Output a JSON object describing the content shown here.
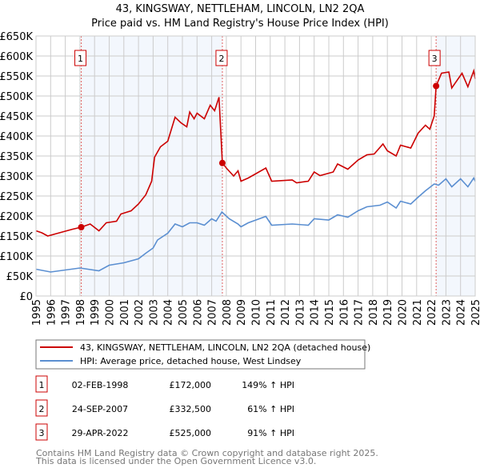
{
  "chart_data": {
    "type": "line",
    "title": "43, KINGSWAY, NETTLEHAM, LINCOLN, LN2 2QA",
    "subtitle": "Price paid vs. HM Land Registry's House Price Index (HPI)",
    "xlim": [
      1995,
      2025
    ],
    "ylim": [
      0,
      650000
    ],
    "x_ticks": [
      "1995",
      "1996",
      "1997",
      "1998",
      "1999",
      "2000",
      "2001",
      "2002",
      "2003",
      "2004",
      "2005",
      "2006",
      "2007",
      "2008",
      "2009",
      "2010",
      "2011",
      "2012",
      "2013",
      "2014",
      "2015",
      "2016",
      "2017",
      "2018",
      "2019",
      "2020",
      "2021",
      "2022",
      "2023",
      "2024",
      "2025"
    ],
    "y_ticks": [
      {
        "v": 0,
        "label": "£0"
      },
      {
        "v": 50000,
        "label": "£50K"
      },
      {
        "v": 100000,
        "label": "£100K"
      },
      {
        "v": 150000,
        "label": "£150K"
      },
      {
        "v": 200000,
        "label": "£200K"
      },
      {
        "v": 250000,
        "label": "£250K"
      },
      {
        "v": 300000,
        "label": "£300K"
      },
      {
        "v": 350000,
        "label": "£350K"
      },
      {
        "v": 400000,
        "label": "£400K"
      },
      {
        "v": 450000,
        "label": "£450K"
      },
      {
        "v": 500000,
        "label": "£500K"
      },
      {
        "v": 550000,
        "label": "£550K"
      },
      {
        "v": 600000,
        "label": "£600K"
      },
      {
        "v": 650000,
        "label": "£650K"
      }
    ],
    "grid": true,
    "series": [
      {
        "name": "43, KINGSWAY, NETTLEHAM, LINCOLN, LN2 2QA (detached house)",
        "color": "#cc0000",
        "x": [
          1995,
          1995.4,
          1995.8,
          1996.5,
          1997.5,
          1998.09,
          1998.7,
          1999.3,
          1999.8,
          2000.5,
          2000.8,
          2001.5,
          2002,
          2002.5,
          2002.9,
          2003.1,
          2003.5,
          2004,
          2004.5,
          2004.9,
          2005.3,
          2005.5,
          2005.8,
          2006,
          2006.5,
          2006.9,
          2007.2,
          2007.5,
          2007.73,
          2008,
          2008.5,
          2008.8,
          2009,
          2009.5,
          2010.7,
          2011.1,
          2012.5,
          2012.8,
          2013.6,
          2014,
          2014.4,
          2015.3,
          2015.6,
          2016.3,
          2017,
          2017.6,
          2018.1,
          2018.7,
          2019,
          2019.6,
          2019.9,
          2020.6,
          2021.1,
          2021.6,
          2021.9,
          2022.2,
          2022.33,
          2022.7,
          2023.2,
          2023.4,
          2024.1,
          2024.5,
          2024.9,
          2025
        ],
        "y": [
          163000,
          158000,
          150000,
          157000,
          167000,
          172000,
          180000,
          163000,
          183000,
          187000,
          205000,
          213000,
          230000,
          253000,
          287000,
          347000,
          373000,
          387000,
          447000,
          433000,
          423000,
          460000,
          443000,
          457000,
          443000,
          477000,
          463000,
          497000,
          332500,
          320000,
          300000,
          313000,
          287000,
          295000,
          320000,
          287000,
          290000,
          283000,
          287000,
          310000,
          301000,
          310000,
          330000,
          317000,
          340000,
          353000,
          355000,
          380000,
          363000,
          350000,
          377000,
          370000,
          407000,
          427000,
          417000,
          450000,
          525000,
          557000,
          560000,
          520000,
          557000,
          523000,
          563000,
          543000
        ]
      },
      {
        "name": "HPI: Average price, detached house, West Lindsey",
        "color": "#5b8fd1",
        "x": [
          1995,
          1996,
          1997,
          1998,
          1999.3,
          2000,
          2001,
          2002,
          2002.5,
          2003,
          2003.3,
          2004,
          2004.5,
          2005,
          2005.5,
          2006,
          2006.5,
          2007,
          2007.3,
          2007.7,
          2008.2,
          2008.8,
          2009,
          2009.5,
          2010.7,
          2011.1,
          2012.5,
          2013.6,
          2014,
          2015,
          2015.6,
          2016.3,
          2017,
          2017.6,
          2018.5,
          2019,
          2019.6,
          2019.9,
          2020.6,
          2021.1,
          2021.6,
          2022.2,
          2022.5,
          2023,
          2023.4,
          2024,
          2024.5,
          2024.9,
          2025
        ],
        "y": [
          67000,
          60000,
          65000,
          70000,
          63000,
          77000,
          83000,
          93000,
          107000,
          120000,
          140000,
          157000,
          180000,
          173000,
          183000,
          183000,
          177000,
          193000,
          187000,
          210000,
          193000,
          180000,
          173000,
          183000,
          199000,
          177000,
          180000,
          177000,
          193000,
          190000,
          203000,
          197000,
          213000,
          223000,
          227000,
          235000,
          220000,
          237000,
          230000,
          247000,
          263000,
          280000,
          277000,
          293000,
          273000,
          293000,
          273000,
          295000,
          287000
        ]
      }
    ],
    "sales": [
      {
        "label": "1",
        "x": 1998.09,
        "y": 172000
      },
      {
        "label": "2",
        "x": 2007.73,
        "y": 332500
      },
      {
        "label": "3",
        "x": 2022.33,
        "y": 525000
      }
    ],
    "shaded_ranges": [
      [
        1998.09,
        2007.73
      ],
      [
        2022.33,
        2025
      ]
    ],
    "legend_placement": "below"
  },
  "table": [
    {
      "num": "1",
      "date": "02-FEB-1998",
      "price": "£172,000",
      "hpi": "149% ↑ HPI"
    },
    {
      "num": "2",
      "date": "24-SEP-2007",
      "price": "£332,500",
      "hpi": "61% ↑ HPI"
    },
    {
      "num": "3",
      "date": "29-APR-2022",
      "price": "£525,000",
      "hpi": "91% ↑ HPI"
    }
  ],
  "footer": {
    "line1": "Contains HM Land Registry data © Crown copyright and database right 2025.",
    "line2": "This data is licensed under the Open Government Licence v3.0."
  }
}
